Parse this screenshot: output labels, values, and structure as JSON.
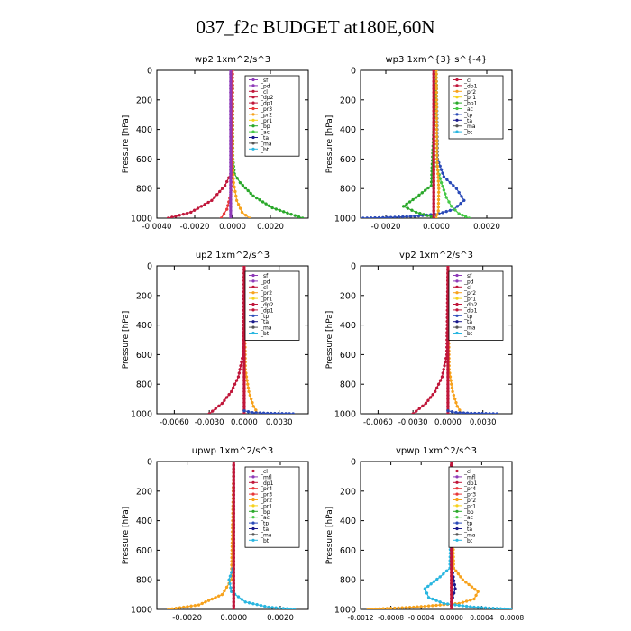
{
  "page": {
    "title": "037_f2c  BUDGET at180E,60N"
  },
  "legend_colors": {
    "_sf": "#8e3ab8",
    "_pd": "#8e3ab8",
    "_mfl": "#8e3ab8",
    "_cl": "#c0163a",
    "_dp2": "#c0163a",
    "_dp1": "#c0163a",
    "_pr4": "#e8373a",
    "_pr3": "#e8373a",
    "_pr2": "#f7a21c",
    "_pr1": "#f7d21c",
    "_bp": "#2aa82a",
    "_bp1": "#2aa82a",
    "_ac": "#45c845",
    "_tp": "#2a4ab8",
    "_ta": "#1a1a8c",
    "_ma": "#555555",
    "_bt": "#29b6e0"
  },
  "chart_data": [
    {
      "type": "line",
      "title": "wp2   1xm^2/s^3",
      "ylabel": "Pressure [hPa]",
      "ylim": [
        1000,
        0
      ],
      "xlim": [
        -0.004,
        0.004
      ],
      "yticks": [
        "0",
        "200",
        "400",
        "600",
        "800",
        "1000"
      ],
      "xticks": [
        "-0.0040",
        "-0.0020",
        "0.0000",
        "0.0020"
      ],
      "xtick_values": [
        -0.004,
        -0.002,
        0.0,
        0.002
      ],
      "legend": [
        "_sf",
        "_pd",
        "_cl",
        "_dp2",
        "_dp1",
        "_pr3",
        "_pr2",
        "_pr1",
        "_bp",
        "_ac",
        "_ta",
        "_ma",
        "_bt"
      ],
      "series": [
        {
          "name": "_bp",
          "x": [
            0.0,
            2e-05,
            0.0001,
            0.0004,
            0.0011,
            0.0021,
            0.0037
          ],
          "y": [
            0,
            600,
            700,
            760,
            850,
            930,
            1000
          ]
        },
        {
          "name": "_cl",
          "x": [
            0.0,
            -2e-05,
            -0.0001,
            -0.0004,
            -0.0011,
            -0.0022,
            -0.0034
          ],
          "y": [
            0,
            600,
            700,
            780,
            880,
            960,
            1000
          ]
        },
        {
          "name": "_pr2",
          "x": [
            0.0,
            1e-05,
            6e-05,
            0.00022,
            0.0005,
            0.0009
          ],
          "y": [
            0,
            650,
            760,
            880,
            960,
            1000
          ]
        },
        {
          "name": "_pr3",
          "x": [
            0.0,
            -3e-05,
            -0.0001,
            -0.0003,
            -0.0006
          ],
          "y": [
            0,
            700,
            840,
            940,
            1000
          ]
        },
        {
          "name": "_pd",
          "x": [
            -0.0001,
            -0.0001,
            -0.0001,
            -0.0001,
            -0.0001,
            -0.0001
          ],
          "y": [
            0,
            200,
            400,
            600,
            800,
            1000
          ]
        }
      ]
    },
    {
      "type": "line",
      "title": "wp3   1xm^{3} s^{-4}",
      "ylabel": "Pressure [hPa]",
      "ylim": [
        1000,
        0
      ],
      "xlim": [
        -0.003,
        0.003
      ],
      "yticks": [
        "0",
        "200",
        "400",
        "600",
        "800",
        "1000"
      ],
      "xticks": [
        "-0.0020",
        "0.0000",
        "0.0020"
      ],
      "xtick_values": [
        -0.002,
        0.0,
        0.002
      ],
      "legend": [
        "_cl",
        "_dp1",
        "_pr2",
        "_pr1",
        "_bp1",
        "_ac",
        "_tp",
        "_ta",
        "_ma",
        "_bt"
      ],
      "series": [
        {
          "name": "_tp",
          "x": [
            0.0,
            5e-05,
            0.0003,
            0.0008,
            0.0011,
            0.0007,
            0.0001,
            -0.0007,
            -0.0018,
            -0.0029
          ],
          "y": [
            0,
            600,
            720,
            800,
            880,
            940,
            970,
            985,
            995,
            1000
          ]
        },
        {
          "name": "_ac",
          "x": [
            0.0,
            3e-05,
            0.0002,
            0.0004,
            0.0006,
            0.0009,
            0.0013
          ],
          "y": [
            0,
            650,
            760,
            860,
            920,
            970,
            1000
          ]
        },
        {
          "name": "_bp1",
          "x": [
            0.0,
            -0.0002,
            -0.0008,
            -0.0013,
            -0.0008,
            -0.0002
          ],
          "y": [
            0,
            780,
            860,
            920,
            960,
            990
          ]
        },
        {
          "name": "_pr2",
          "x": [
            0.0,
            3e-05,
            0.0001,
            8e-05,
            0.0
          ],
          "y": [
            0,
            600,
            800,
            950,
            1000
          ]
        },
        {
          "name": "_cl",
          "x": [
            -0.0001,
            -0.0001,
            -0.0001,
            -0.0001,
            -0.0001,
            -0.0001
          ],
          "y": [
            0,
            200,
            400,
            600,
            800,
            1000
          ]
        }
      ]
    },
    {
      "type": "line",
      "title": "up2   1xm^2/s^3",
      "ylabel": "Pressure [hPa]",
      "ylim": [
        1000,
        0
      ],
      "xlim": [
        -0.0075,
        0.0055
      ],
      "yticks": [
        "0",
        "200",
        "400",
        "600",
        "800",
        "1000"
      ],
      "xticks": [
        "-0.0060",
        "-0.0030",
        "0.0000",
        "0.0030"
      ],
      "xtick_values": [
        -0.006,
        -0.003,
        0.0,
        0.003
      ],
      "legend": [
        "_sf",
        "_pd",
        "_cl",
        "_pr2",
        "_pr1",
        "_dp2",
        "_dp1",
        "_tp",
        "_ta",
        "_ma",
        "_bt"
      ],
      "series": [
        {
          "name": "_dp2",
          "x": [
            0.0,
            -0.0001,
            -0.0005,
            -0.0011,
            -0.0019,
            -0.003
          ],
          "y": [
            0,
            600,
            750,
            850,
            930,
            1000
          ]
        },
        {
          "name": "_pr2",
          "x": [
            0.0,
            0.0001,
            0.0004,
            0.0008,
            0.0012
          ],
          "y": [
            0,
            700,
            850,
            950,
            1000
          ]
        },
        {
          "name": "_cl",
          "x": [
            0.0,
            0.0,
            0.0,
            0.0,
            0.0,
            0.0
          ],
          "y": [
            0,
            200,
            400,
            600,
            800,
            1000
          ]
        },
        {
          "name": "_tp",
          "x": [
            0.0,
            0.0007,
            0.002,
            0.0042
          ],
          "y": [
            980,
            992,
            997,
            1000
          ]
        }
      ]
    },
    {
      "type": "line",
      "title": "vp2   1xm^2/s^3",
      "ylabel": "Pressure [hPa]",
      "ylim": [
        1000,
        0
      ],
      "xlim": [
        -0.0075,
        0.0055
      ],
      "yticks": [
        "0",
        "200",
        "400",
        "600",
        "800",
        "1000"
      ],
      "xticks": [
        "-0.0060",
        "-0.0030",
        "0.0000",
        "0.0030"
      ],
      "xtick_values": [
        -0.006,
        -0.003,
        0.0,
        0.003
      ],
      "legend": [
        "_sf",
        "_pd",
        "_cl",
        "_pr2",
        "_pr1",
        "_dp2",
        "_dp1",
        "_tp",
        "_ta",
        "_ma",
        "_bt"
      ],
      "series": [
        {
          "name": "_dp2",
          "x": [
            0.0,
            -0.0001,
            -0.0005,
            -0.0011,
            -0.0019,
            -0.003
          ],
          "y": [
            0,
            600,
            750,
            850,
            930,
            1000
          ]
        },
        {
          "name": "_pr2",
          "x": [
            0.0,
            0.0001,
            0.0004,
            0.0008,
            0.0012
          ],
          "y": [
            0,
            700,
            850,
            950,
            1000
          ]
        },
        {
          "name": "_cl",
          "x": [
            0.0,
            0.0,
            0.0,
            0.0,
            0.0,
            0.0
          ],
          "y": [
            0,
            200,
            400,
            600,
            800,
            1000
          ]
        },
        {
          "name": "_tp",
          "x": [
            0.0,
            0.0007,
            0.002,
            0.0042
          ],
          "y": [
            980,
            992,
            997,
            1000
          ]
        }
      ]
    },
    {
      "type": "line",
      "title": "upwp   1xm^2/s^3",
      "ylabel": "Pressure [hPa]",
      "ylim": [
        1000,
        0
      ],
      "xlim": [
        -0.0033,
        0.0032
      ],
      "yticks": [
        "0",
        "200",
        "400",
        "600",
        "800",
        "1000"
      ],
      "xticks": [
        "-0.0020",
        "0.0000",
        "0.0020"
      ],
      "xtick_values": [
        -0.002,
        0.0,
        0.002
      ],
      "legend": [
        "_cl",
        "_mfl",
        "_dp1",
        "_pr4",
        "_pr3",
        "_pr2",
        "_pr1",
        "_bp",
        "_ac",
        "_tp",
        "_ta",
        "_ma",
        "_bt"
      ],
      "series": [
        {
          "name": "_pr2",
          "x": [
            0.0,
            -0.0001,
            -0.0005,
            -0.0015,
            -0.0028
          ],
          "y": [
            0,
            800,
            900,
            970,
            1000
          ]
        },
        {
          "name": "_bt",
          "x": [
            0.0,
            0.0,
            -0.0002,
            -0.0001,
            0.0005,
            0.0015,
            0.0026
          ],
          "y": [
            0,
            700,
            800,
            880,
            950,
            985,
            1000
          ]
        },
        {
          "name": "_cl",
          "x": [
            0.0,
            0.0,
            0.0,
            0.0,
            0.0,
            0.0
          ],
          "y": [
            0,
            200,
            400,
            600,
            800,
            1000
          ]
        }
      ]
    },
    {
      "type": "line",
      "title": "vpwp   1xm^2/s^3",
      "ylabel": "Pressure [hPa]",
      "ylim": [
        1000,
        0
      ],
      "xlim": [
        -0.0012,
        0.0008
      ],
      "yticks": [
        "0",
        "200",
        "400",
        "600",
        "800",
        "1000"
      ],
      "xticks": [
        "-0.0012",
        "-0.0008",
        "-0.0004",
        "0.0000",
        "0.0004",
        "0.0008"
      ],
      "xtick_values": [
        -0.0012,
        -0.0008,
        -0.0004,
        0.0,
        0.0004,
        0.0008
      ],
      "legend": [
        "_cl",
        "_mfl",
        "_dp1",
        "_pr4",
        "_pr3",
        "_pr2",
        "_pr1",
        "_bp",
        "_ac",
        "_tp",
        "_ta",
        "_ma",
        "_bt"
      ],
      "series": [
        {
          "name": "_pr2",
          "x": [
            0.0,
            3e-05,
            0.00015,
            0.00035,
            0.0003,
            0.0001,
            -0.0005,
            -0.0011
          ],
          "y": [
            0,
            720,
            800,
            880,
            930,
            960,
            985,
            1000
          ]
        },
        {
          "name": "_bt",
          "x": [
            0.0,
            -2e-05,
            -0.00015,
            -0.00035,
            -0.0003,
            -0.0001,
            0.0003,
            0.0008
          ],
          "y": [
            0,
            720,
            780,
            860,
            920,
            960,
            985,
            1000
          ]
        },
        {
          "name": "_ta",
          "x": [
            0.0,
            0.0,
            5e-05,
            0.0,
            0.0
          ],
          "y": [
            0,
            700,
            860,
            950,
            1000
          ]
        },
        {
          "name": "_cl",
          "x": [
            0.0,
            0.0,
            0.0,
            0.0,
            0.0,
            0.0
          ],
          "y": [
            0,
            200,
            400,
            600,
            800,
            1000
          ]
        }
      ]
    }
  ]
}
